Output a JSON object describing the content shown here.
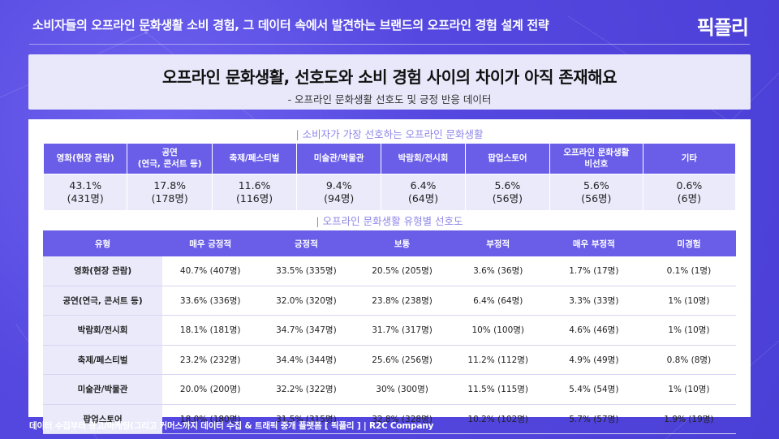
{
  "header": {
    "title": "소비자들의 오프라인 문화생활 소비 경험, 그 데이터 속에서 발견하는 브랜드의 오프라인 경험 설계 전략",
    "logo": "픽플리"
  },
  "banner": {
    "title": "오프라인 문화생활, 선호도와 소비 경험 사이의 차이가 아직 존재해요",
    "subtitle": "- 오프라인 문화생활 선호도 및 긍정 반응 데이터"
  },
  "preference": {
    "section_title": "소비자가 가장 선호하는 오프라인 문화생활",
    "columns": [
      {
        "header_line1": "영화(현장 관람)",
        "header_line2": "",
        "pct": "43.1%",
        "count": "(431명)"
      },
      {
        "header_line1": "공연",
        "header_line2": "(연극, 콘서트 등)",
        "pct": "17.8%",
        "count": "(178명)"
      },
      {
        "header_line1": "축제/페스티벌",
        "header_line2": "",
        "pct": "11.6%",
        "count": "(116명)"
      },
      {
        "header_line1": "미술관/박물관",
        "header_line2": "",
        "pct": "9.4%",
        "count": "(94명)"
      },
      {
        "header_line1": "박람회/전시회",
        "header_line2": "",
        "pct": "6.4%",
        "count": "(64명)"
      },
      {
        "header_line1": "팝업스토어",
        "header_line2": "",
        "pct": "5.6%",
        "count": "(56명)"
      },
      {
        "header_line1": "오프라인 문화생활",
        "header_line2": "비선호",
        "pct": "5.6%",
        "count": "(56명)"
      },
      {
        "header_line1": "기타",
        "header_line2": "",
        "pct": "0.6%",
        "count": "(6명)"
      }
    ]
  },
  "by_type": {
    "section_title": "오프라인 문화생활 유형별 선호도",
    "headers": [
      "유형",
      "매우 긍정적",
      "긍정적",
      "보통",
      "부정적",
      "매우 부정적",
      "미경험"
    ],
    "rows": [
      [
        "영화(현장 관람)",
        "40.7% (407명)",
        "33.5% (335명)",
        "20.5% (205명)",
        "3.6% (36명)",
        "1.7%   (17명)",
        "0.1% (1명)"
      ],
      [
        "공연(연극, 콘서트 등)",
        "33.6% (336명)",
        "32.0% (320명)",
        "23.8% (238명)",
        "6.4% (64명)",
        "3.3% (33명)",
        "1% (10명)"
      ],
      [
        "박람회/전시회",
        "18.1% (181명)",
        "34.7% (347명)",
        "31.7% (317명)",
        "10% (100명)",
        "4.6% (46명)",
        "1% (10명)"
      ],
      [
        "축제/페스티벌",
        "23.2% (232명)",
        "34.4% (344명)",
        "25.6% (256명)",
        "11.2% (112명)",
        "4.9% (49명)",
        "0.8% (8명)"
      ],
      [
        "미술관/박물관",
        "20.0% (200명)",
        "32.2% (322명)",
        "30% (300명)",
        "11.5% (115명)",
        "5.4% (54명)",
        "1% (10명)"
      ],
      [
        "팝업스토어",
        "18.0% (180명)",
        "31.5% (315명)",
        "32.8% (328명)",
        "10.2% (102명)",
        "5.7%   (57명)",
        "1.9% (19명)"
      ]
    ]
  },
  "footer": {
    "text": "데이터 수집부터 광고/마케팅(그리고 커머스까지 데이터 수집 & 트래픽 중개 플랫폼 [ 픽플리 ]  |  R2C Company"
  },
  "colors": {
    "background": "#5548e0",
    "accent": "#6a5ee8",
    "light_row": "#ebeafb"
  }
}
